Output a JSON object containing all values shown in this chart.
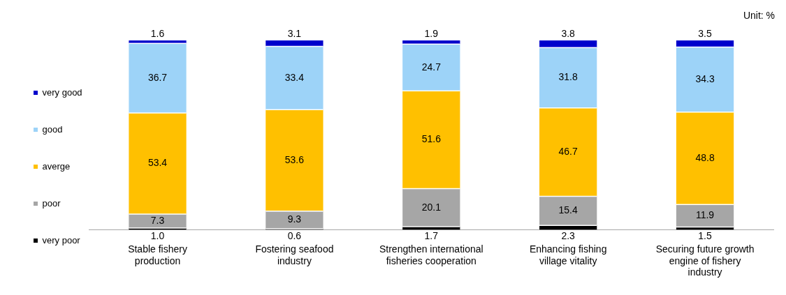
{
  "chart_data": {
    "type": "bar",
    "stacked": true,
    "legend": "left",
    "ylim": [
      0,
      100
    ],
    "annotations": [
      "Unit: %"
    ],
    "categories": [
      "Stable fishery production",
      "Fostering seafood industry",
      "Strengthen international fisheries cooperation",
      "Enhancing fishing village vitality",
      "Securing future growth engine of fishery industry"
    ],
    "series": [
      {
        "name": "very poor",
        "color": "#000000",
        "values": [
          1.0,
          0.6,
          1.7,
          2.3,
          1.5
        ],
        "value_labels": [
          "1.0",
          "0.6",
          "1.7",
          "2.3",
          "1.5"
        ]
      },
      {
        "name": "poor",
        "color": "#a6a6a6",
        "values": [
          7.3,
          9.3,
          20.1,
          15.4,
          11.9
        ],
        "value_labels": [
          "7.3",
          "9.3",
          "20.1",
          "15.4",
          "11.9"
        ]
      },
      {
        "name": "averge",
        "color": "#ffc000",
        "values": [
          53.4,
          53.6,
          51.6,
          46.7,
          48.8
        ],
        "value_labels": [
          "53.4",
          "53.6",
          "51.6",
          "46.7",
          "48.8"
        ]
      },
      {
        "name": "good",
        "color": "#9dd3f8",
        "values": [
          36.7,
          33.4,
          24.7,
          31.8,
          34.3
        ],
        "value_labels": [
          "36.7",
          "33.4",
          "24.7",
          "31.8",
          "34.3"
        ]
      },
      {
        "name": "very good",
        "color": "#0000cc",
        "values": [
          1.6,
          3.1,
          1.9,
          3.8,
          3.5
        ],
        "value_labels": [
          "1.6",
          "3.1",
          "1.9",
          "3.8",
          "3.5"
        ]
      }
    ]
  }
}
